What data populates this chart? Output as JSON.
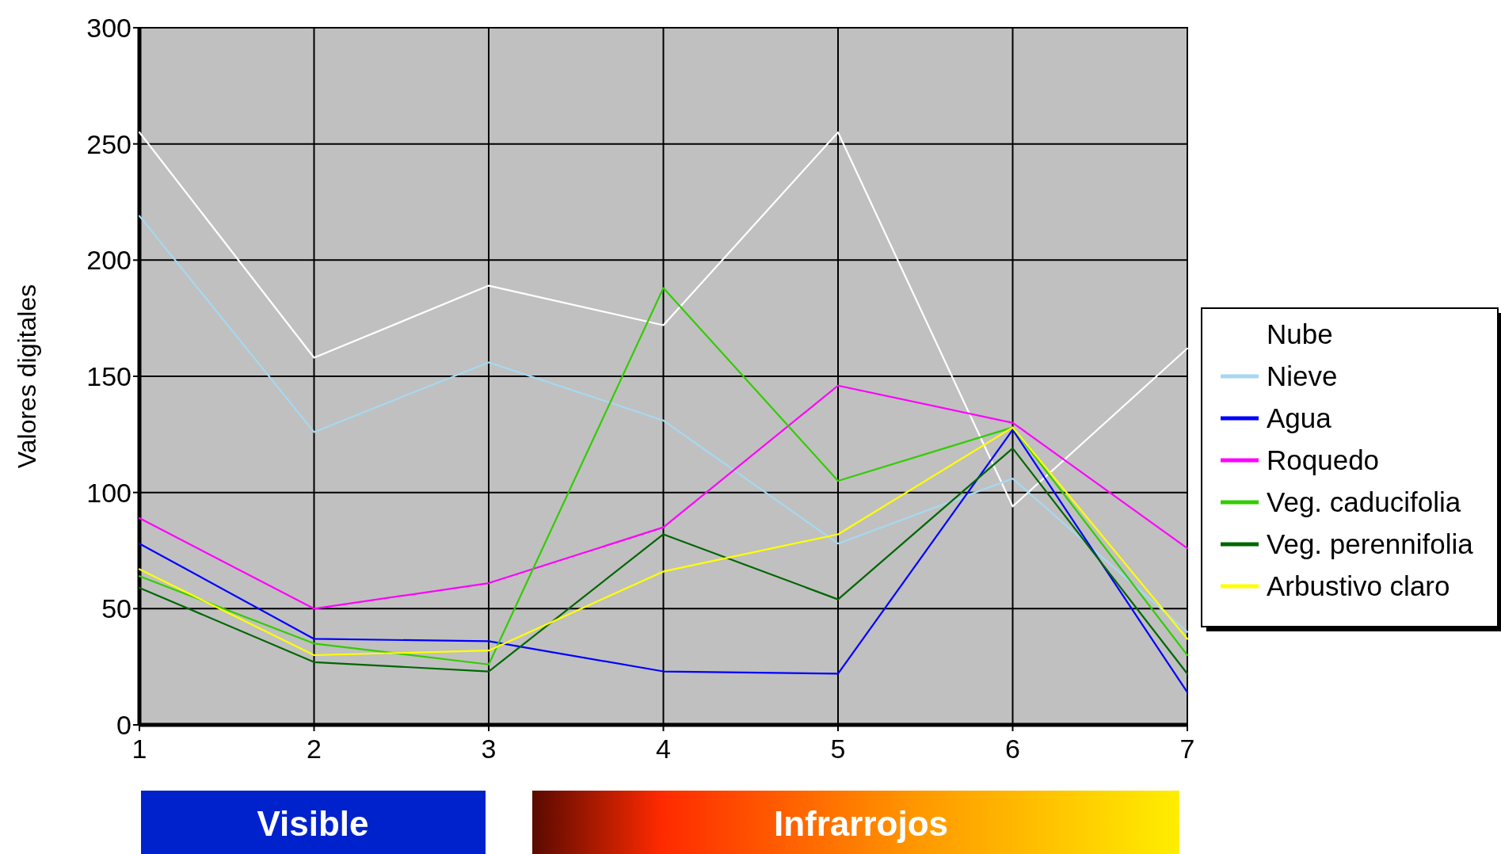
{
  "chart_data": {
    "type": "line",
    "ylabel": "Valores digitales",
    "x": [
      1,
      2,
      3,
      4,
      5,
      6,
      7
    ],
    "xlim": [
      1,
      7
    ],
    "xticks": [
      1,
      2,
      3,
      4,
      5,
      6,
      7
    ],
    "ylim": [
      0,
      300
    ],
    "yticks": [
      0,
      50,
      100,
      150,
      200,
      250,
      300
    ],
    "grid": true,
    "legend": "right",
    "marker": "none",
    "series": [
      {
        "name": "Nube",
        "color": "#ffffff",
        "values": [
          255,
          158,
          189,
          172,
          255,
          94,
          162
        ]
      },
      {
        "name": "Nieve",
        "color": "#a6d8f0",
        "values": [
          219,
          126,
          156,
          131,
          78,
          106,
          40
        ]
      },
      {
        "name": "Agua",
        "color": "#0000ff",
        "values": [
          78,
          37,
          36,
          23,
          22,
          127,
          14
        ]
      },
      {
        "name": "Roquedo",
        "color": "#ff00ff",
        "values": [
          89,
          50,
          61,
          85,
          146,
          130,
          76
        ]
      },
      {
        "name": "Veg. caducifolia",
        "color": "#33cc00",
        "values": [
          64,
          35,
          26,
          188,
          105,
          128,
          30
        ]
      },
      {
        "name": "Veg. perennifolia",
        "color": "#006600",
        "values": [
          59,
          27,
          23,
          82,
          54,
          119,
          22
        ]
      },
      {
        "name": "Arbustivo claro",
        "color": "#ffff00",
        "values": [
          67,
          30,
          32,
          66,
          82,
          128,
          37
        ]
      }
    ],
    "annotations": [
      "Visible",
      "Infrarrojos"
    ]
  }
}
